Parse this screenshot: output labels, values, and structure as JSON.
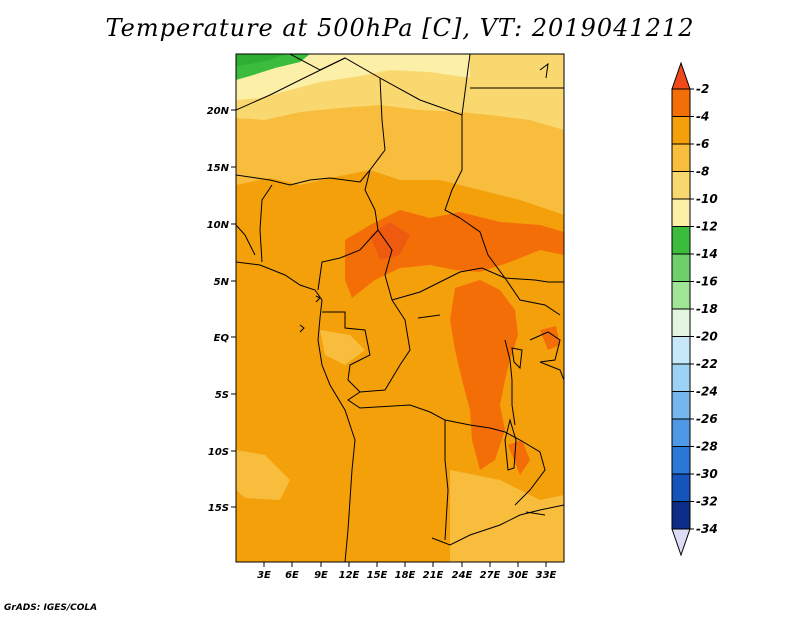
{
  "title": "Temperature at 500hPa [C], VT: 2019041212",
  "credit": "GrADS: IGES/COLA",
  "map": {
    "lat_labels": [
      "20N",
      "15N",
      "10N",
      "5N",
      "EQ",
      "5S",
      "10S",
      "15S"
    ],
    "lon_labels": [
      "3E",
      "6E",
      "9E",
      "12E",
      "15E",
      "18E",
      "21E",
      "24E",
      "27E",
      "30E",
      "33E"
    ]
  },
  "colorbar": {
    "labels": [
      "-2",
      "-4",
      "-6",
      "-8",
      "-10",
      "-12",
      "-14",
      "-16",
      "-18",
      "-20",
      "-22",
      "-24",
      "-26",
      "-28",
      "-30",
      "-32",
      "-34"
    ],
    "colors": [
      "#f04a1a",
      "#f46e08",
      "#f4a00a",
      "#f8bd3c",
      "#fad870",
      "#fcf0a8",
      "#3cbc3c",
      "#6ed06a",
      "#a0e496",
      "#e2f6e0",
      "#c6e8f8",
      "#9cd2f4",
      "#76b6ee",
      "#4e98e6",
      "#2a78d8",
      "#1554ba",
      "#0c2c88",
      "#081464",
      "#dcdcf4"
    ]
  }
}
